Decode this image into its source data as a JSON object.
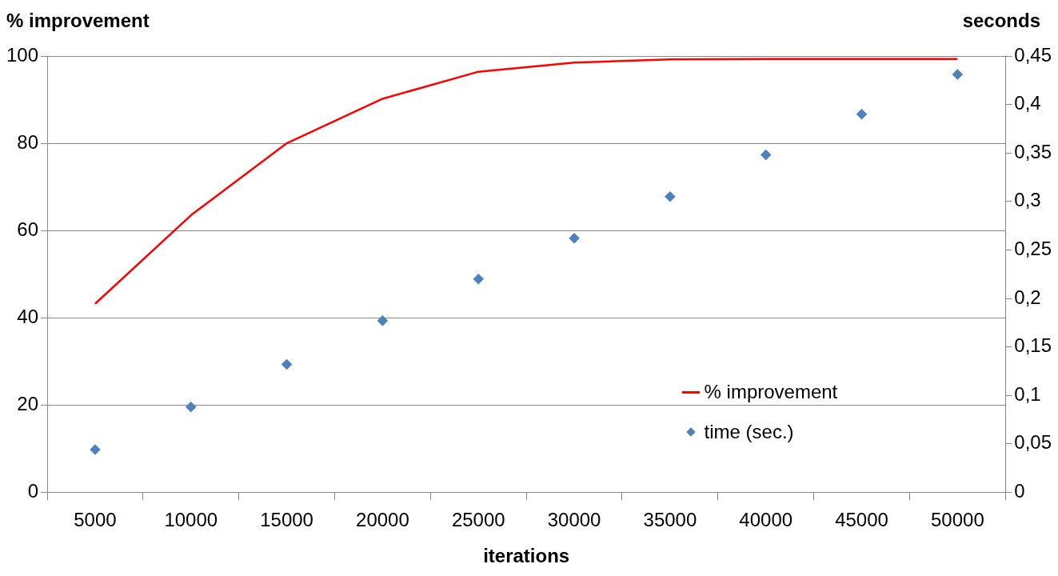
{
  "chart_data": {
    "type": "line",
    "xlabel": "iterations",
    "ylabel": "% improvement",
    "y2label": "seconds",
    "categories": [
      "5000",
      "10000",
      "15000",
      "20000",
      "25000",
      "30000",
      "35000",
      "40000",
      "45000",
      "50000"
    ],
    "series": [
      {
        "name": "% improvement",
        "color": "#ff0000",
        "marker": "none",
        "values": [
          43.2,
          63.5,
          80,
          90.2,
          96.4,
          98.5,
          99.2,
          99.3,
          99.3,
          99.3
        ]
      },
      {
        "name": "time (sec.)",
        "color": "#4f81bd",
        "type": "scatter",
        "marker": "diamond",
        "axis": "y2",
        "values": [
          0.044,
          0.088,
          0.132,
          0.177,
          0.22,
          0.262,
          0.305,
          0.348,
          0.39,
          0.431
        ]
      }
    ],
    "ylim": [
      0,
      100
    ],
    "yticks": [
      0,
      20,
      40,
      60,
      80,
      100
    ],
    "y2lim": [
      0,
      0.45
    ],
    "y2ticks": [
      {
        "value": 0,
        "label": "0"
      },
      {
        "value": 0.05,
        "label": "0,05"
      },
      {
        "value": 0.1,
        "label": "0,1"
      },
      {
        "value": 0.15,
        "label": "0,15"
      },
      {
        "value": 0.2,
        "label": "0,2"
      },
      {
        "value": 0.25,
        "label": "0,25"
      },
      {
        "value": 0.3,
        "label": "0,3"
      },
      {
        "value": 0.35,
        "label": "0,35"
      },
      {
        "value": 0.4,
        "label": "0,4"
      },
      {
        "value": 0.45,
        "label": "0,45"
      }
    ],
    "grid": "y",
    "legend": "bottom right"
  }
}
